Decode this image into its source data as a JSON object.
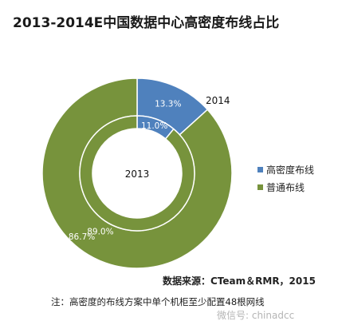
{
  "title": "2013-2014E中国数据中心高密度布线占比",
  "chart_data": {
    "type": "pie",
    "donut": true,
    "categories": [
      "高密度布线",
      "普通布线"
    ],
    "colors": [
      "#4f81bd",
      "#77933c"
    ],
    "series": [
      {
        "name": "2014",
        "values": [
          13.3,
          86.7
        ],
        "value_labels": [
          "13.3%",
          "86.7%"
        ]
      },
      {
        "name": "2013",
        "values": [
          11.0,
          89.0
        ],
        "value_labels": [
          "11.0%",
          "89.0%"
        ]
      }
    ],
    "legend_position": "right"
  },
  "source": "数据来源：CTeam＆RMR，2015",
  "note": "注：高密度的布线方案中单个机柜至少配置48根网线",
  "watermark": "微信号: chinadcc"
}
